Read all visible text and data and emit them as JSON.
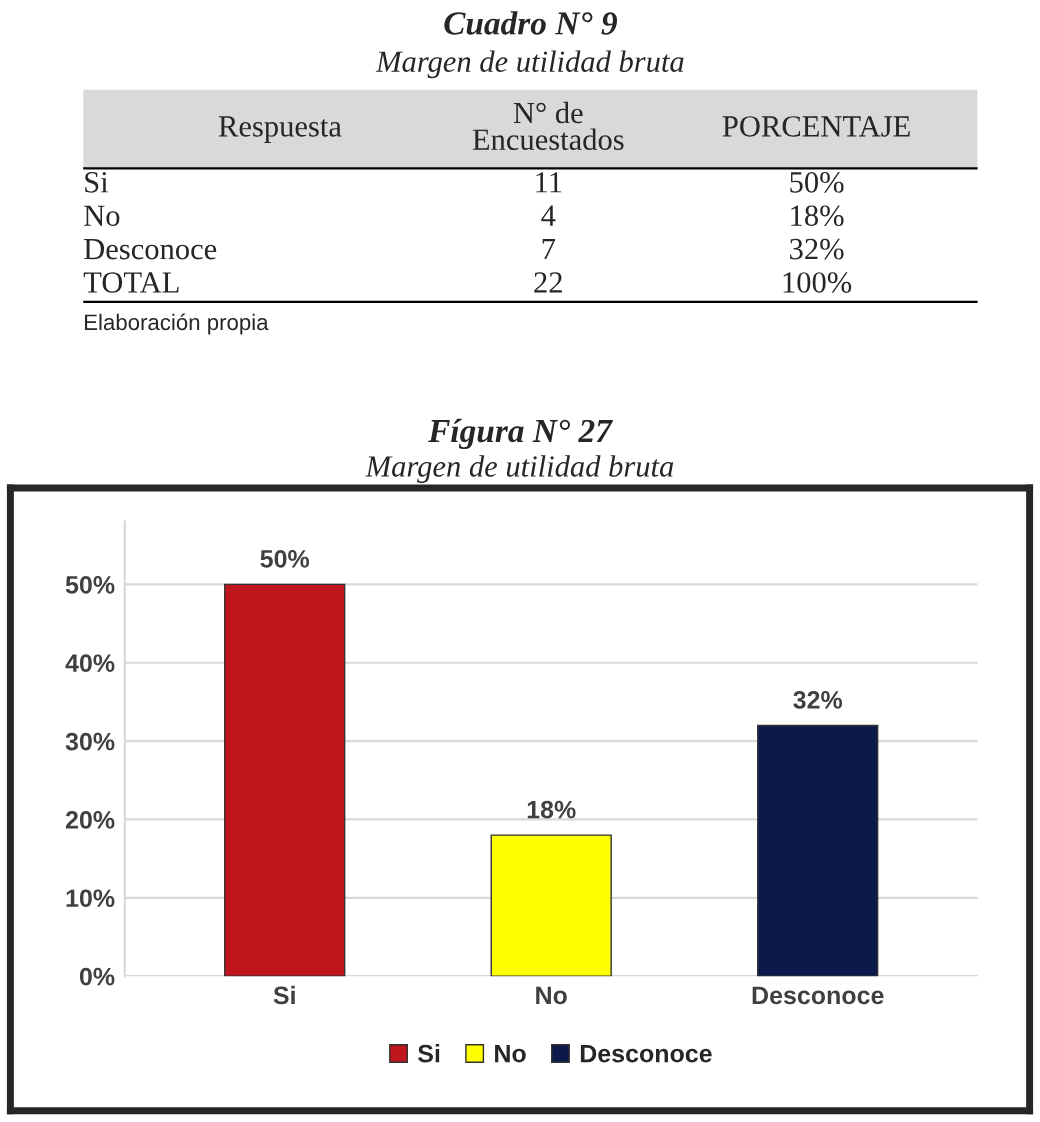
{
  "chart_data": [
    {
      "type": "other",
      "title": "Cuadro N° 9",
      "subtitle": "Margen de utilidad bruta",
      "categories": [
        "Respuesta",
        "N° de\nEncuestados",
        "PORCENTAJE"
      ],
      "y_categories": [
        "Si",
        "No",
        "Desconoce",
        "TOTAL"
      ],
      "cell_labels": [
        [
          "11",
          "50%"
        ],
        [
          "4",
          "18%"
        ],
        [
          "7",
          "32%"
        ],
        [
          "22",
          "100%"
        ]
      ],
      "annotations": [
        "Elaboración propia"
      ]
    },
    {
      "type": "bar",
      "title": "Fígura N° 27",
      "subtitle": "Margen de utilidad bruta",
      "categories": [
        "Si",
        "No",
        "Desconoce"
      ],
      "series": [
        {
          "name": "Si",
          "color": "#c0151c",
          "values": [
            50,
            null,
            null
          ]
        },
        {
          "name": "No",
          "color": "#ffff00",
          "values": [
            null,
            18,
            null
          ]
        },
        {
          "name": "Desconoce",
          "color": "#0b1a4a",
          "values": [
            null,
            null,
            32
          ]
        }
      ],
      "value_labels": [
        "50%",
        "18%",
        "32%"
      ],
      "ylim": [
        0,
        58
      ],
      "yticks": [
        {
          "value": 0,
          "label": "0%"
        },
        {
          "value": 10,
          "label": "10%"
        },
        {
          "value": 20,
          "label": "20%"
        },
        {
          "value": 30,
          "label": "30%"
        },
        {
          "value": 40,
          "label": "40%"
        },
        {
          "value": 50,
          "label": "50%"
        }
      ],
      "grid": "y",
      "legend": "bottom"
    }
  ]
}
